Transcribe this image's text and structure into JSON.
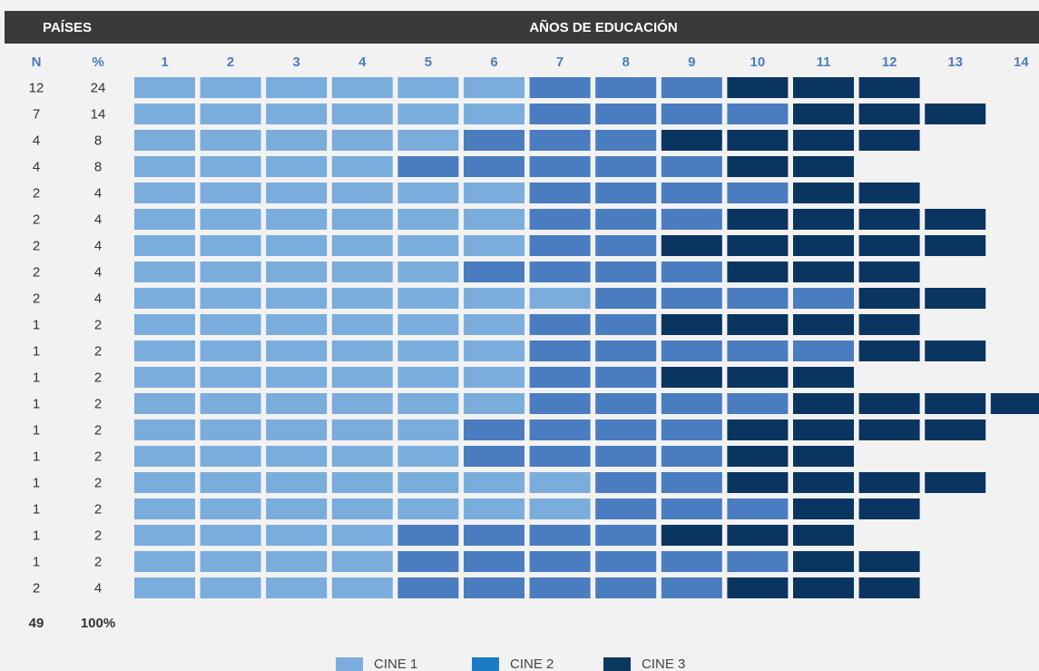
{
  "header": {
    "countries": "PAÍSES",
    "years": "AÑOS DE EDUCACIÓN"
  },
  "columns": {
    "n": "N",
    "pct": "%",
    "years": [
      "1",
      "2",
      "3",
      "4",
      "5",
      "6",
      "7",
      "8",
      "9",
      "10",
      "11",
      "12",
      "13",
      "14"
    ]
  },
  "levels": [
    {
      "name": "CINE 1",
      "color": "#7aaddc",
      "legend_color": "#7aaddc"
    },
    {
      "name": "CINE 2",
      "color": "#4a7cc0",
      "legend_color": "#1a7dc4"
    },
    {
      "name": "CINE 3",
      "color": "#0a3560",
      "legend_color": "#0b3a5e"
    }
  ],
  "rows": [
    {
      "n": "12",
      "pct": "24",
      "cells": [
        1,
        1,
        1,
        1,
        1,
        1,
        2,
        2,
        2,
        3,
        3,
        3
      ]
    },
    {
      "n": "7",
      "pct": "14",
      "cells": [
        1,
        1,
        1,
        1,
        1,
        1,
        2,
        2,
        2,
        2,
        3,
        3,
        3
      ]
    },
    {
      "n": "4",
      "pct": "8",
      "cells": [
        1,
        1,
        1,
        1,
        1,
        2,
        2,
        2,
        3,
        3,
        3,
        3
      ]
    },
    {
      "n": "4",
      "pct": "8",
      "cells": [
        1,
        1,
        1,
        1,
        2,
        2,
        2,
        2,
        2,
        3,
        3
      ]
    },
    {
      "n": "2",
      "pct": "4",
      "cells": [
        1,
        1,
        1,
        1,
        1,
        1,
        2,
        2,
        2,
        2,
        3,
        3
      ]
    },
    {
      "n": "2",
      "pct": "4",
      "cells": [
        1,
        1,
        1,
        1,
        1,
        1,
        2,
        2,
        2,
        3,
        3,
        3,
        3
      ]
    },
    {
      "n": "2",
      "pct": "4",
      "cells": [
        1,
        1,
        1,
        1,
        1,
        1,
        2,
        2,
        3,
        3,
        3,
        3,
        3
      ]
    },
    {
      "n": "2",
      "pct": "4",
      "cells": [
        1,
        1,
        1,
        1,
        1,
        2,
        2,
        2,
        2,
        3,
        3,
        3
      ]
    },
    {
      "n": "2",
      "pct": "4",
      "cells": [
        1,
        1,
        1,
        1,
        1,
        1,
        1,
        2,
        2,
        2,
        2,
        3,
        3
      ]
    },
    {
      "n": "1",
      "pct": "2",
      "cells": [
        1,
        1,
        1,
        1,
        1,
        1,
        2,
        2,
        3,
        3,
        3,
        3
      ]
    },
    {
      "n": "1",
      "pct": "2",
      "cells": [
        1,
        1,
        1,
        1,
        1,
        1,
        2,
        2,
        2,
        2,
        2,
        3,
        3
      ]
    },
    {
      "n": "1",
      "pct": "2",
      "cells": [
        1,
        1,
        1,
        1,
        1,
        1,
        2,
        2,
        3,
        3,
        3
      ]
    },
    {
      "n": "1",
      "pct": "2",
      "cells": [
        1,
        1,
        1,
        1,
        1,
        1,
        2,
        2,
        2,
        2,
        3,
        3,
        3,
        3
      ]
    },
    {
      "n": "1",
      "pct": "2",
      "cells": [
        1,
        1,
        1,
        1,
        1,
        2,
        2,
        2,
        2,
        3,
        3,
        3,
        3
      ]
    },
    {
      "n": "1",
      "pct": "2",
      "cells": [
        1,
        1,
        1,
        1,
        1,
        2,
        2,
        2,
        2,
        3,
        3
      ]
    },
    {
      "n": "1",
      "pct": "2",
      "cells": [
        1,
        1,
        1,
        1,
        1,
        1,
        1,
        2,
        2,
        3,
        3,
        3,
        3
      ]
    },
    {
      "n": "1",
      "pct": "2",
      "cells": [
        1,
        1,
        1,
        1,
        1,
        1,
        1,
        2,
        2,
        2,
        3,
        3
      ]
    },
    {
      "n": "1",
      "pct": "2",
      "cells": [
        1,
        1,
        1,
        1,
        2,
        2,
        2,
        2,
        3,
        3,
        3
      ]
    },
    {
      "n": "1",
      "pct": "2",
      "cells": [
        1,
        1,
        1,
        1,
        2,
        2,
        2,
        2,
        2,
        2,
        3,
        3
      ]
    },
    {
      "n": "2",
      "pct": "4",
      "cells": [
        1,
        1,
        1,
        1,
        2,
        2,
        2,
        2,
        2,
        3,
        3,
        3
      ]
    }
  ],
  "totals": {
    "n": "49",
    "pct": "100%"
  }
}
